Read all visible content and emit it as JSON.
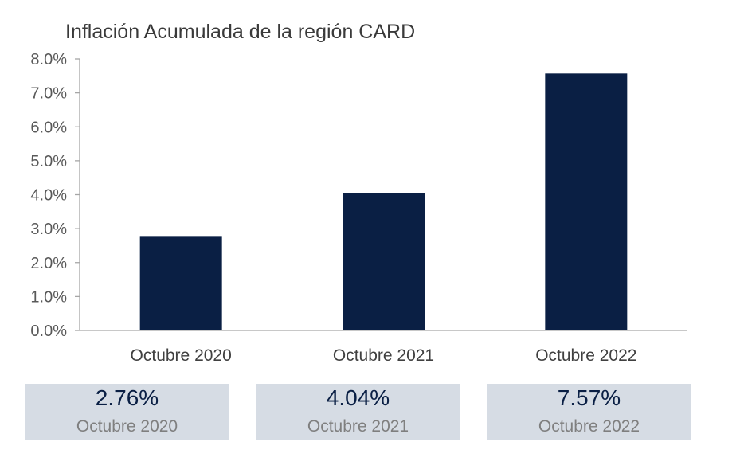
{
  "chart_data": {
    "type": "bar",
    "title": "Inflación Acumulada de la región CARD",
    "categories": [
      "Octubre 2020",
      "Octubre 2021",
      "Octubre 2022"
    ],
    "values": [
      2.76,
      4.04,
      7.57
    ],
    "ylim": [
      0,
      8
    ],
    "yticks": [
      0,
      1,
      2,
      3,
      4,
      5,
      6,
      7,
      8
    ],
    "ytick_labels": [
      "0.0%",
      "1.0%",
      "2.0%",
      "3.0%",
      "4.0%",
      "5.0%",
      "6.0%",
      "7.0%",
      "8.0%"
    ],
    "xlabel": "",
    "ylabel": "",
    "grid": false,
    "bar_color": "#0a1f44"
  },
  "summary": [
    {
      "value": "2.76%",
      "label": "Octubre 2020"
    },
    {
      "value": "4.04%",
      "label": "Octubre 2021"
    },
    {
      "value": "7.57%",
      "label": "Octubre 2022"
    }
  ]
}
